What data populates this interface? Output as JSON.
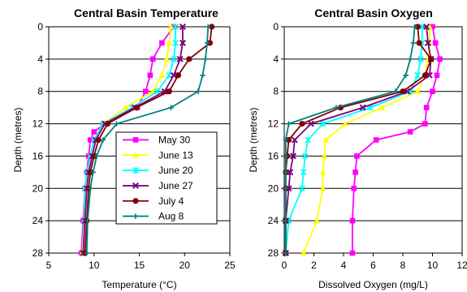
{
  "chart_data": [
    {
      "type": "line",
      "title": "Central Basin Temperature",
      "xlabel": "Temperature (°C)",
      "ylabel": "Depth (metres)",
      "xlim": [
        5,
        25
      ],
      "ylim": [
        0,
        28
      ],
      "y_inverted": true,
      "xticks": [
        5,
        10,
        15,
        20,
        25
      ],
      "yticks": [
        0,
        4,
        8,
        12,
        16,
        20,
        24,
        28
      ],
      "grid": "horizontal",
      "legend": "bottom-right",
      "series": [
        {
          "name": "May 30",
          "color": "#ff00ff",
          "marker": "square",
          "points": [
            [
              18.8,
              0
            ],
            [
              17.5,
              2
            ],
            [
              16.5,
              4
            ],
            [
              16.2,
              6
            ],
            [
              15.7,
              8
            ],
            [
              14.8,
              10
            ],
            [
              11.2,
              12
            ],
            [
              10.0,
              13
            ],
            [
              9.6,
              14
            ],
            [
              9.4,
              16
            ],
            [
              9.2,
              18
            ],
            [
              9.0,
              20
            ],
            [
              8.8,
              24
            ],
            [
              8.6,
              28
            ]
          ]
        },
        {
          "name": "June 13",
          "color": "#ffff00",
          "marker": "triangle",
          "points": [
            [
              18.5,
              0
            ],
            [
              18.3,
              2
            ],
            [
              18.0,
              4
            ],
            [
              17.5,
              6
            ],
            [
              16.5,
              8
            ],
            [
              13.5,
              10
            ],
            [
              11.0,
              12
            ],
            [
              10.0,
              14
            ],
            [
              9.6,
              16
            ],
            [
              9.3,
              18
            ],
            [
              9.0,
              20
            ],
            [
              8.9,
              24
            ],
            [
              8.7,
              28
            ]
          ]
        },
        {
          "name": "June 20",
          "color": "#00ffff",
          "marker": "star",
          "points": [
            [
              19.0,
              0
            ],
            [
              19.0,
              2
            ],
            [
              18.8,
              4
            ],
            [
              18.3,
              6
            ],
            [
              17.0,
              8
            ],
            [
              14.2,
              10
            ],
            [
              11.0,
              12
            ],
            [
              10.0,
              14
            ],
            [
              9.6,
              16
            ],
            [
              9.2,
              18
            ],
            [
              9.0,
              20
            ],
            [
              8.9,
              24
            ],
            [
              8.8,
              28
            ]
          ]
        },
        {
          "name": "June 27",
          "color": "#800080",
          "marker": "x",
          "points": [
            [
              19.8,
              0
            ],
            [
              19.8,
              2
            ],
            [
              19.5,
              4
            ],
            [
              18.8,
              6
            ],
            [
              17.8,
              8
            ],
            [
              14.5,
              10
            ],
            [
              11.2,
              12
            ],
            [
              10.2,
              14
            ],
            [
              9.8,
              16
            ],
            [
              9.4,
              18
            ],
            [
              9.2,
              20
            ],
            [
              9.0,
              24
            ],
            [
              8.8,
              28
            ]
          ]
        },
        {
          "name": "July 4",
          "color": "#800000",
          "marker": "circle",
          "points": [
            [
              23.0,
              0
            ],
            [
              22.8,
              2
            ],
            [
              20.5,
              4
            ],
            [
              19.3,
              6
            ],
            [
              18.3,
              8
            ],
            [
              14.7,
              10
            ],
            [
              11.5,
              12
            ],
            [
              10.5,
              14
            ],
            [
              10.0,
              16
            ],
            [
              9.6,
              18
            ],
            [
              9.4,
              20
            ],
            [
              9.2,
              24
            ],
            [
              9.0,
              28
            ]
          ]
        },
        {
          "name": "Aug 8",
          "color": "#008080",
          "marker": "plus",
          "points": [
            [
              22.6,
              0
            ],
            [
              22.5,
              2
            ],
            [
              22.3,
              4
            ],
            [
              22.0,
              6
            ],
            [
              21.5,
              8
            ],
            [
              18.5,
              10
            ],
            [
              12.5,
              12
            ],
            [
              11.0,
              14
            ],
            [
              10.3,
              16
            ],
            [
              9.9,
              18
            ],
            [
              9.6,
              20
            ],
            [
              9.3,
              24
            ],
            [
              9.2,
              28
            ]
          ]
        }
      ]
    },
    {
      "type": "line",
      "title": "Central Basin Oxygen",
      "xlabel": "Dissolved Oxygen (mg/L)",
      "ylabel": "Depth (metres)",
      "xlim": [
        0,
        12
      ],
      "ylim": [
        0,
        28
      ],
      "y_inverted": true,
      "xticks": [
        0,
        2,
        4,
        6,
        8,
        10,
        12
      ],
      "yticks": [
        0,
        4,
        8,
        12,
        16,
        20,
        24,
        28
      ],
      "grid": "horizontal",
      "series": [
        {
          "name": "May 30",
          "color": "#ff00ff",
          "marker": "square",
          "points": [
            [
              10.0,
              0
            ],
            [
              10.2,
              2
            ],
            [
              10.5,
              4
            ],
            [
              10.3,
              6
            ],
            [
              10.0,
              8
            ],
            [
              9.6,
              10
            ],
            [
              9.5,
              12
            ],
            [
              8.5,
              13
            ],
            [
              6.2,
              14
            ],
            [
              4.9,
              16
            ],
            [
              4.8,
              18
            ],
            [
              4.7,
              20
            ],
            [
              4.6,
              24
            ],
            [
              4.6,
              28
            ]
          ]
        },
        {
          "name": "June 13",
          "color": "#ffff00",
          "marker": "triangle",
          "points": [
            [
              9.8,
              0
            ],
            [
              9.8,
              2
            ],
            [
              9.7,
              4
            ],
            [
              9.5,
              6
            ],
            [
              9.0,
              8
            ],
            [
              6.6,
              10
            ],
            [
              4.1,
              12
            ],
            [
              2.8,
              14
            ],
            [
              2.7,
              16
            ],
            [
              2.6,
              18
            ],
            [
              2.6,
              20
            ],
            [
              2.2,
              24
            ],
            [
              1.3,
              28
            ]
          ]
        },
        {
          "name": "June 20",
          "color": "#00ffff",
          "marker": "star",
          "points": [
            [
              9.3,
              0
            ],
            [
              9.3,
              2
            ],
            [
              9.2,
              4
            ],
            [
              9.0,
              6
            ],
            [
              8.5,
              8
            ],
            [
              5.8,
              10
            ],
            [
              2.6,
              12
            ],
            [
              1.6,
              14
            ],
            [
              1.4,
              16
            ],
            [
              1.3,
              18
            ],
            [
              1.2,
              20
            ],
            [
              0.3,
              24
            ],
            [
              0.1,
              28
            ]
          ]
        },
        {
          "name": "June 27",
          "color": "#800080",
          "marker": "x",
          "points": [
            [
              9.6,
              0
            ],
            [
              9.7,
              2
            ],
            [
              9.9,
              4
            ],
            [
              9.8,
              6
            ],
            [
              8.3,
              8
            ],
            [
              5.3,
              10
            ],
            [
              1.8,
              12
            ],
            [
              0.7,
              14
            ],
            [
              0.6,
              16
            ],
            [
              0.4,
              18
            ],
            [
              0.3,
              20
            ],
            [
              0.1,
              24
            ],
            [
              0.1,
              28
            ]
          ]
        },
        {
          "name": "July 4",
          "color": "#800000",
          "marker": "circle",
          "points": [
            [
              9.0,
              0
            ],
            [
              9.1,
              2
            ],
            [
              9.9,
              4
            ],
            [
              9.5,
              6
            ],
            [
              8.0,
              8
            ],
            [
              3.8,
              10
            ],
            [
              1.2,
              12
            ],
            [
              0.3,
              14
            ],
            [
              0.2,
              16
            ],
            [
              0.1,
              18
            ],
            [
              0.1,
              20
            ],
            [
              0.1,
              24
            ],
            [
              0.1,
              28
            ]
          ]
        },
        {
          "name": "Aug 8",
          "color": "#008080",
          "marker": "plus",
          "points": [
            [
              8.8,
              0
            ],
            [
              8.7,
              2
            ],
            [
              8.5,
              4
            ],
            [
              8.2,
              6
            ],
            [
              7.5,
              8
            ],
            [
              3.5,
              10
            ],
            [
              0.3,
              12
            ],
            [
              0.1,
              14
            ],
            [
              0.1,
              16
            ],
            [
              0.1,
              18
            ],
            [
              0.1,
              20
            ],
            [
              0.1,
              24
            ],
            [
              0.1,
              28
            ]
          ]
        }
      ]
    }
  ]
}
